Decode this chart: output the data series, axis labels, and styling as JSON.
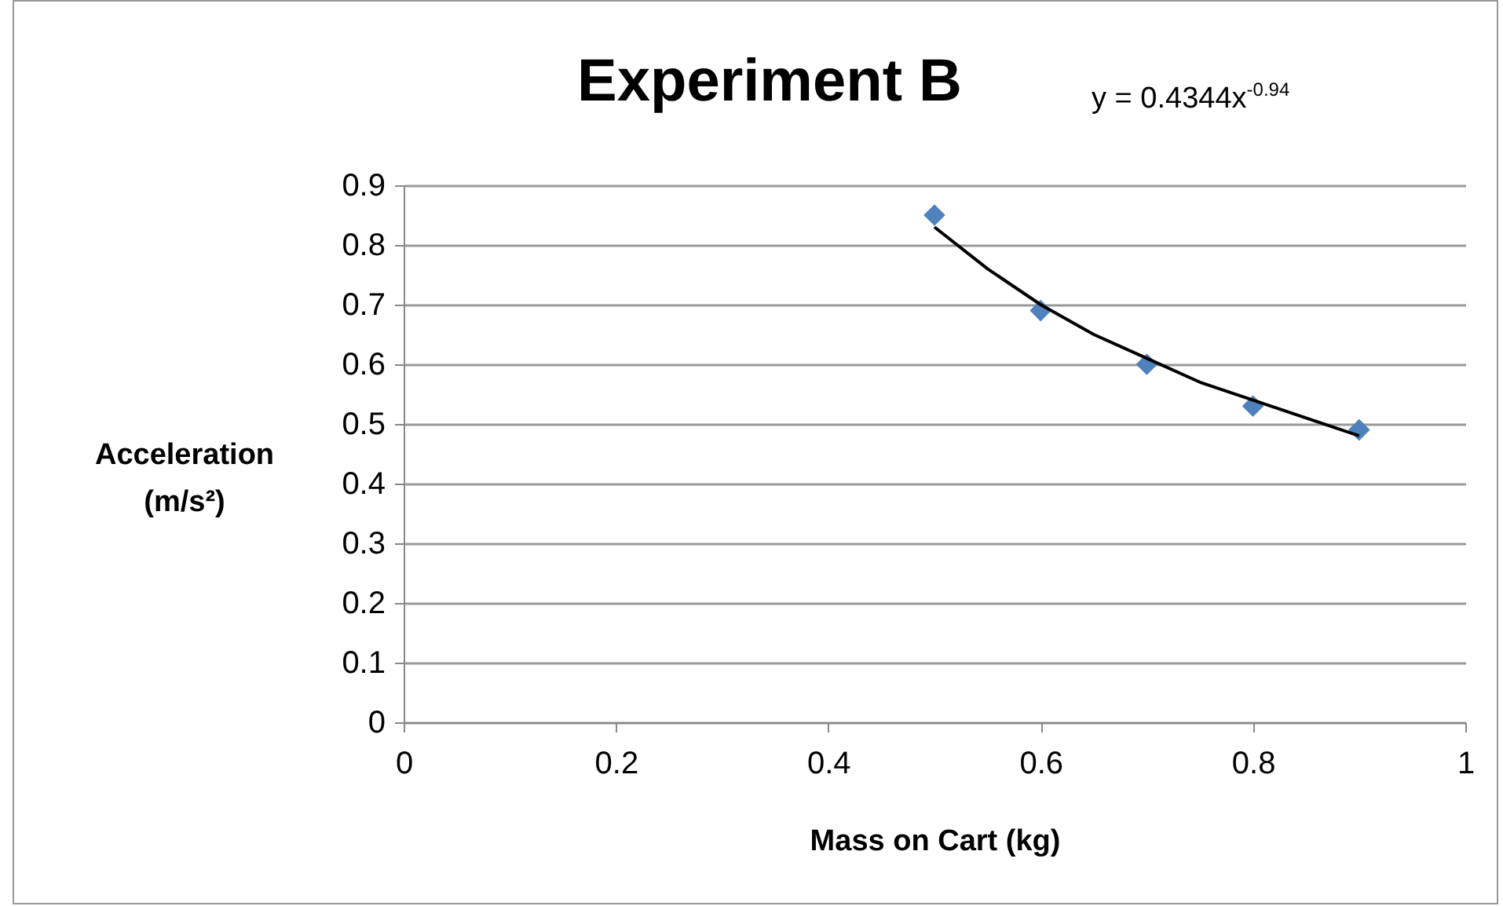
{
  "chart_data": {
    "type": "scatter",
    "title": "Experiment B",
    "xlabel": "Mass on Cart (kg)",
    "ylabel": "Acceleration (m/s²)",
    "annotations": [
      "y = 0.4344x$^{-0.94}$"
    ],
    "xlim": [
      0,
      1
    ],
    "xticks": [
      0,
      0.2,
      0.4,
      0.6,
      0.8,
      1
    ],
    "ylim": [
      0,
      0.9
    ],
    "yticks": [
      0,
      0.1,
      0.2,
      0.3,
      0.4,
      0.5,
      0.6,
      0.7,
      0.8,
      0.9
    ],
    "grid": "y",
    "series": [
      {
        "color": "#4f81bd",
        "marker": "diamond",
        "x": [
          0.5,
          0.6,
          0.7,
          0.8,
          0.9
        ],
        "values": [
          0.85,
          0.69,
          0.6,
          0.53,
          0.49
        ]
      },
      {
        "type": "line",
        "color": "#000000",
        "marker": "none",
        "x": [
          0.5,
          0.55,
          0.6,
          0.65,
          0.7,
          0.75,
          0.8,
          0.85,
          0.9
        ],
        "values": [
          0.83,
          0.76,
          0.7,
          0.65,
          0.61,
          0.57,
          0.54,
          0.51,
          0.48
        ]
      }
    ]
  }
}
